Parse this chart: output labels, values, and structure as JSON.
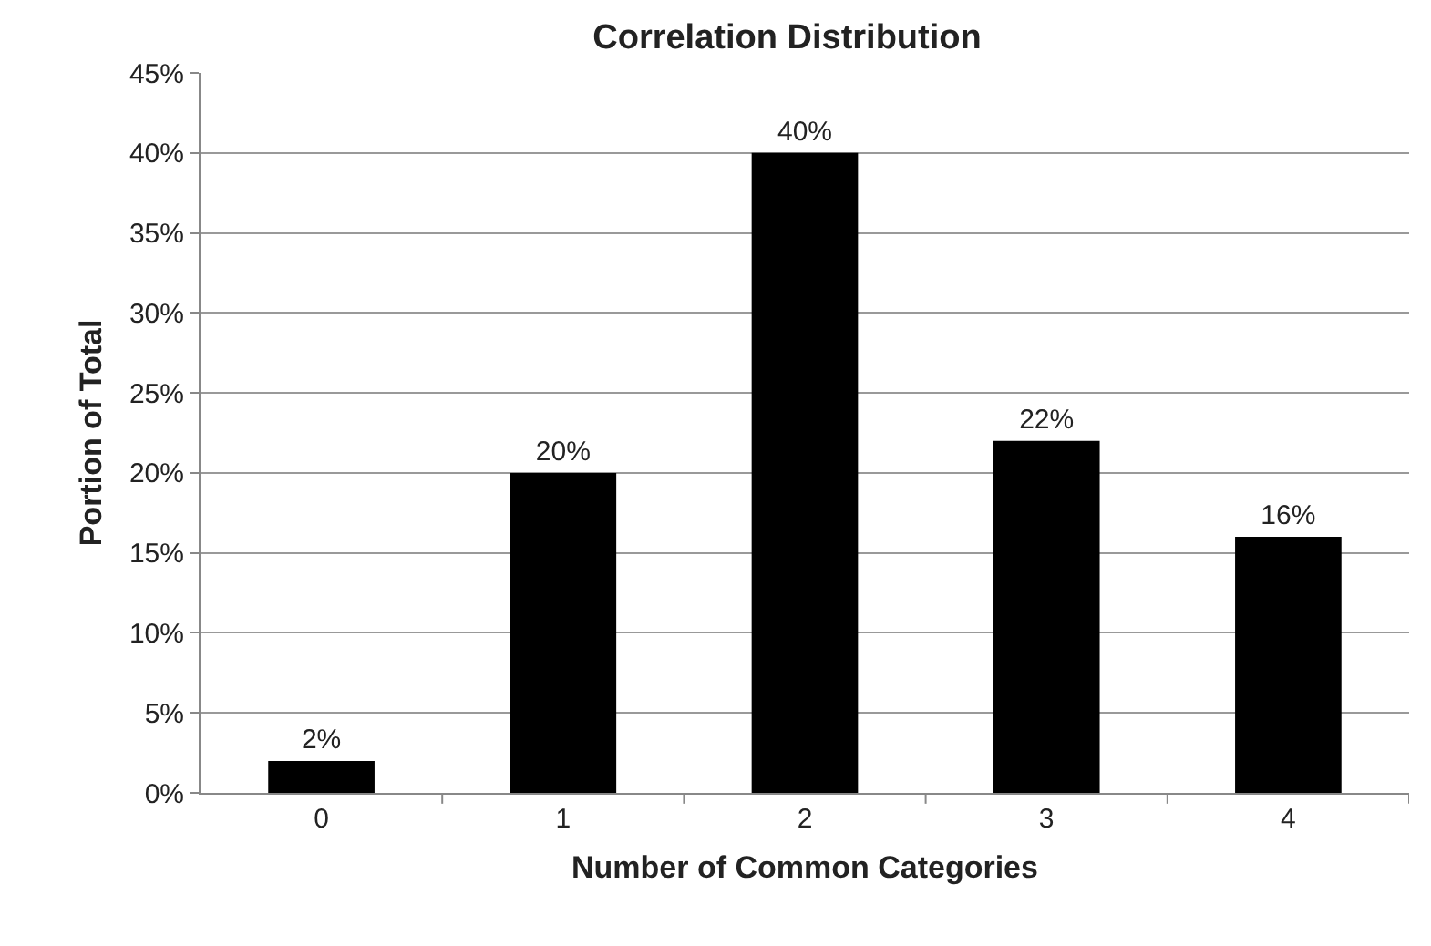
{
  "chart_data": {
    "type": "bar",
    "title": "Correlation Distribution",
    "xlabel": "Number of Common Categories",
    "ylabel": "Portion of Total",
    "categories": [
      "0",
      "1",
      "2",
      "3",
      "4"
    ],
    "values": [
      2,
      20,
      40,
      22,
      16
    ],
    "color": "#000000",
    "value_labels": [
      "2%",
      "20%",
      "40%",
      "22%",
      "16%"
    ],
    "ylim": [
      0,
      45
    ],
    "yticks": [
      {
        "value": 0,
        "label": "0%"
      },
      {
        "value": 5,
        "label": "5%"
      },
      {
        "value": 10,
        "label": "10%"
      },
      {
        "value": 15,
        "label": "15%"
      },
      {
        "value": 20,
        "label": "20%"
      },
      {
        "value": 25,
        "label": "25%"
      },
      {
        "value": 30,
        "label": "30%"
      },
      {
        "value": 35,
        "label": "35%"
      },
      {
        "value": 40,
        "label": "40%"
      },
      {
        "value": 45,
        "label": "45%"
      }
    ],
    "grid": "y"
  }
}
